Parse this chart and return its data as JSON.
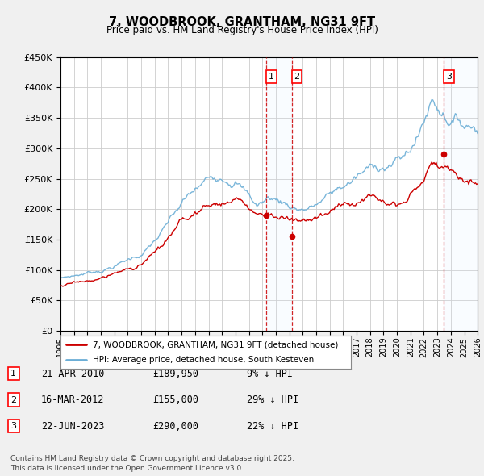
{
  "title": "7, WOODBROOK, GRANTHAM, NG31 9FT",
  "subtitle": "Price paid vs. HM Land Registry's House Price Index (HPI)",
  "legend_line1": "7, WOODBROOK, GRANTHAM, NG31 9FT (detached house)",
  "legend_line2": "HPI: Average price, detached house, South Kesteven",
  "footer": "Contains HM Land Registry data © Crown copyright and database right 2025.\nThis data is licensed under the Open Government Licence v3.0.",
  "transactions": [
    {
      "num": 1,
      "date": "21-APR-2010",
      "price": "£189,950",
      "pct": "9% ↓ HPI",
      "year": 2010.3
    },
    {
      "num": 2,
      "date": "16-MAR-2012",
      "price": "£155,000",
      "pct": "29% ↓ HPI",
      "year": 2012.2
    },
    {
      "num": 3,
      "date": "22-JUN-2023",
      "price": "£290,000",
      "pct": "22% ↓ HPI",
      "year": 2023.5
    }
  ],
  "hpi_color": "#6baed6",
  "price_color": "#cc0000",
  "shade_color": "#ddeeff",
  "background_color": "#f0f0f0",
  "plot_bg_color": "#ffffff",
  "grid_color": "#cccccc",
  "ylim_max": 450000,
  "xlim_start": 1995,
  "xlim_end": 2026,
  "figsize": [
    6.0,
    5.9
  ],
  "dpi": 100
}
